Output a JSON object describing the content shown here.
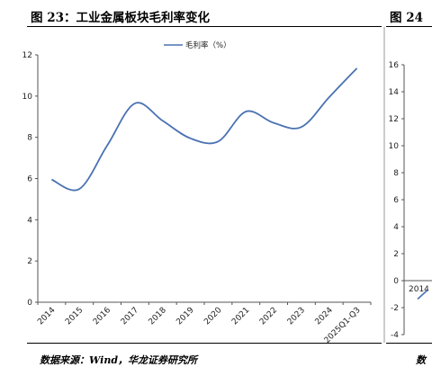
{
  "titles": {
    "left": "图 23：工业金属板块毛利率变化",
    "right": "图 24"
  },
  "sources": {
    "left": "数据来源：Wind，华龙证券研究所",
    "right": "数"
  },
  "chart_data": [
    {
      "type": "line",
      "title": "",
      "xlabel": "",
      "ylabel": "",
      "categories": [
        "2014",
        "2015",
        "2016",
        "2017",
        "2018",
        "2019",
        "2020",
        "2021",
        "2022",
        "2023",
        "2024",
        "2025Q1-Q3"
      ],
      "ylim": [
        0,
        12
      ],
      "yticks": [
        "0",
        "2",
        "4",
        "6",
        "8",
        "10",
        "12"
      ],
      "legend": "top-center",
      "grid": false,
      "series": [
        {
          "name": "毛利率（%）",
          "color": "#4a72b2",
          "values": [
            5.95,
            5.5,
            7.6,
            9.65,
            8.8,
            7.95,
            7.8,
            9.25,
            8.7,
            8.5,
            9.95,
            11.35
          ]
        }
      ]
    },
    {
      "type": "line",
      "title": "",
      "categories": [
        "2014"
      ],
      "ylim": [
        -4,
        16
      ],
      "yticks": [
        "-4",
        "-2",
        "0",
        "2",
        "4",
        "6",
        "8",
        "10",
        "12",
        "14",
        "16"
      ],
      "series": [
        {
          "color": "#4a72b2",
          "values": [
            -1.1
          ]
        }
      ]
    }
  ]
}
